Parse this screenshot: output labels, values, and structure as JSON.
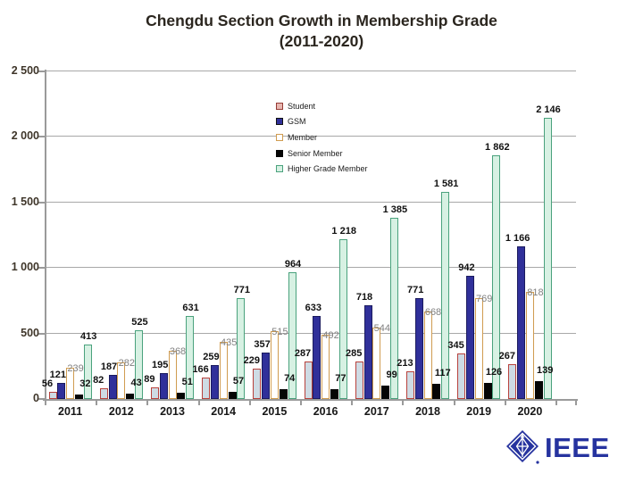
{
  "title": {
    "line1": "Chengdu Section Growth in Membership Grade",
    "line2": "(2011-2020)"
  },
  "chart_data": {
    "type": "bar",
    "title": "Chengdu Section Growth in Membership Grade (2011-2020)",
    "categories": [
      "2011",
      "2012",
      "2013",
      "2014",
      "2015",
      "2016",
      "2017",
      "2018",
      "2019",
      "2020"
    ],
    "series": [
      {
        "name": "Student",
        "values": [
          56,
          82,
          89,
          166,
          229,
          287,
          285,
          213,
          345,
          267
        ],
        "fill": "#cedbe4",
        "border": "#b8413c",
        "label_color": "#111111",
        "label_bold": true,
        "legend_fill": "#e7b7b1",
        "legend_border": "#963b35"
      },
      {
        "name": "GSM",
        "values": [
          121,
          187,
          195,
          259,
          357,
          633,
          718,
          771,
          942,
          1166
        ],
        "fill": "#30309a",
        "border": "#1b1b5e",
        "label_color": "#111111",
        "label_bold": true,
        "legend_fill": "#30309a",
        "legend_border": "#111111"
      },
      {
        "name": "Member",
        "values": [
          239,
          282,
          368,
          435,
          515,
          492,
          544,
          668,
          769,
          818
        ],
        "fill": "#ffffff",
        "border": "#d09c50",
        "label_color": "#808080",
        "label_bold": false,
        "legend_fill": "#ffffff",
        "legend_border": "#d09c50"
      },
      {
        "name": "Senior Member",
        "values": [
          32,
          43,
          51,
          57,
          74,
          77,
          99,
          117,
          126,
          139
        ],
        "fill": "#050505",
        "border": "#050505",
        "label_color": "#111111",
        "label_bold": true,
        "legend_fill": "#050505",
        "legend_border": "#050505"
      },
      {
        "name": "Higher Grade Member",
        "values": [
          413,
          525,
          631,
          771,
          964,
          1218,
          1385,
          1581,
          1862,
          2146
        ],
        "fill": "#d7f1e3",
        "border": "#4aa27d",
        "label_color": "#111111",
        "label_bold": true,
        "legend_fill": "#d7f1e3",
        "legend_border": "#4aa27d"
      }
    ],
    "xlabel": "",
    "ylabel": "",
    "ylim": [
      0,
      2500
    ],
    "ytick_interval": 500,
    "ytick_labels": [
      "0",
      "500",
      "1 000",
      "1 500",
      "2 000",
      "2 500"
    ],
    "grid": true,
    "legend_position": "inside-upper-middle",
    "legend_labels": [
      "Student",
      "GSM",
      "Member",
      "Senior Member",
      "Higher Grade Member"
    ]
  },
  "logo": {
    "text": "IEEE",
    "registered_mark": "®",
    "color": "#26339f"
  }
}
